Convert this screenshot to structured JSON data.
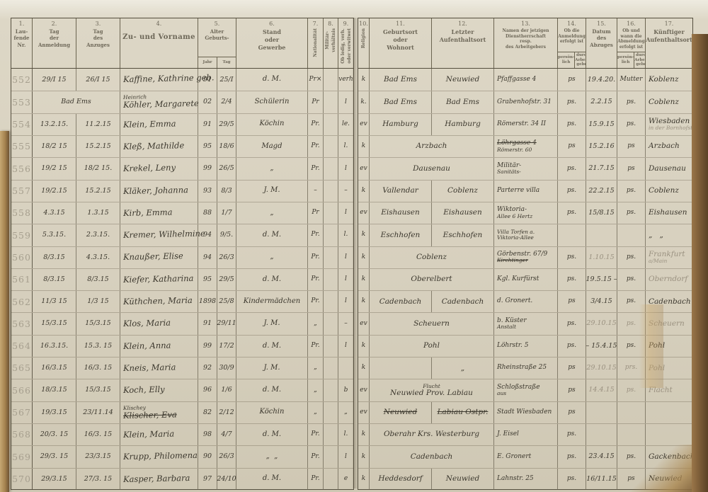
{
  "colors": {
    "paper": "#d7d0be",
    "ink": "#3b372d",
    "pencil": "#9a9180",
    "printed": "#6d6758",
    "binding": "#a5824f"
  },
  "header": {
    "c1": {
      "n": "1.",
      "l": "Lau-\nfende\nNr."
    },
    "c2": {
      "n": "2.",
      "l": "Tag\nder\nAnmeldung"
    },
    "c3": {
      "n": "3.",
      "l": "Tag\ndes\nAnzuges"
    },
    "c4": {
      "n": "4.",
      "l": "Zu- und Vorname"
    },
    "c5": {
      "n": "5.",
      "l": "Alter\nGeburts-",
      "s1": "Jahr",
      "s2": "Tag"
    },
    "c6": {
      "n": "6.",
      "l": "Stand\noder\nGewerbe"
    },
    "c7": {
      "n": "7.",
      "l": "Nationalität"
    },
    "c8": {
      "n": "8.",
      "l": "Militär-\nverhältnis"
    },
    "c9": {
      "n": "9.",
      "l": "Ob ledig, verh.\noder verwitwet"
    },
    "c10": {
      "n": "10.",
      "l": "Religion"
    },
    "c11": {
      "n": "11.",
      "l": "Geburtsort\noder\nWohnort"
    },
    "c12": {
      "n": "12.",
      "l": "Letzter\nAufenthaltsort"
    },
    "c13": {
      "n": "13.",
      "l": "Namen der jetzigen\nDienstherrschaft\nresp.\ndes Arbeitgebers"
    },
    "c14": {
      "n": "14.",
      "l": "Ob die\nAnmeldung\nerfolgt ist",
      "s1": "persön-\nlich",
      "s2": "durch\nArbeit-\ngeber"
    },
    "c15": {
      "n": "15.",
      "l": "Datum\ndes\nAbzuges"
    },
    "c16": {
      "n": "16.",
      "l": "Ob und\nwann die\nAbmeldung\nerfolgt ist",
      "s1": "persön-\nlich",
      "s2": "durch\nArbeit-\ngeber"
    },
    "c17": {
      "n": "17.",
      "l": "Künftiger\nAufenthaltsort"
    }
  },
  "rows": [
    {
      "nr": "552",
      "a": "29/I 15",
      "z": "26/I 15",
      "name": [
        {
          "t": "Kaffine, Kathrine geb."
        }
      ],
      "j": "91",
      "t": "25/I",
      "g": "d. M.",
      "n7": "Pr×",
      "m8": "",
      "f9": "verh",
      "r10": "k",
      "geb": [
        {
          "t": "Bad Ems"
        }
      ],
      "lz": [
        {
          "t": "Neuwied"
        }
      ],
      "d": [
        {
          "t": "Pfaffgasse 4"
        }
      ],
      "an": "ps",
      "ab": "19.4.20.",
      "am": "Mutter",
      "zl": [
        {
          "t": "Koblenz"
        }
      ]
    },
    {
      "nr": "553",
      "sp23": "Bad Ems",
      "name": [
        {
          "t": "Heinrich",
          "c": "small"
        },
        {
          "t": "Köhler, Margarete"
        }
      ],
      "j": "02",
      "t": "2/4",
      "g": "Schülerin",
      "n7": "Pr",
      "m8": "",
      "f9": "l",
      "r10": "k.",
      "geb": [
        {
          "t": "Bad Ems"
        }
      ],
      "lz": [
        {
          "t": "Bad Ems"
        }
      ],
      "d": [
        {
          "t": "Grabenhofstr. 31"
        }
      ],
      "an": "ps.",
      "ab": "2.2.15",
      "am": "ps.",
      "zl": [
        {
          "t": "Coblenz"
        }
      ]
    },
    {
      "nr": "554",
      "a": "13.2.15.",
      "z": "11.2.15",
      "name": [
        {
          "t": "Klein, Emma"
        }
      ],
      "j": "91",
      "t": "29/5",
      "g": "Köchin",
      "n7": "Pr.",
      "m8": "",
      "f9": "le.",
      "r10": "ev",
      "geb": [
        {
          "t": "Hamburg"
        }
      ],
      "lz": [
        {
          "t": "Hamburg"
        }
      ],
      "d": [
        {
          "t": "Römerstr. 34 II"
        }
      ],
      "an": "ps.",
      "ab": "15.9.15",
      "am": "ps.",
      "zl": [
        {
          "t": "Wiesbaden"
        },
        {
          "t": "in der Bornhofstr.",
          "c": "pencil small"
        }
      ]
    },
    {
      "nr": "555",
      "a": "18/2 15",
      "z": "15.2.15",
      "name": [
        {
          "t": "Kleß, Mathilde"
        }
      ],
      "j": "95",
      "t": "18/6",
      "g": "Magd",
      "n7": "Pr.",
      "m8": "",
      "f9": "l.",
      "r10": "k",
      "sp": [
        {
          "t": "Arzbach"
        }
      ],
      "d": [
        {
          "t": "Löhrgasse 4",
          "c": "struck"
        },
        {
          "t": "Römerstr. 60",
          "c": "small"
        }
      ],
      "an": "ps",
      "ab": "15.2.16",
      "am": "ps",
      "zl": [
        {
          "t": "Arzbach"
        }
      ]
    },
    {
      "nr": "556",
      "a": "19/2 15",
      "z": "18/2 15.",
      "name": [
        {
          "t": "Krekel, Leny"
        }
      ],
      "j": "99",
      "t": "26/5",
      "g": "„",
      "n7": "Pr.",
      "m8": "",
      "f9": "l",
      "r10": "ev",
      "sp": [
        {
          "t": "Dausenau"
        }
      ],
      "d": [
        {
          "t": "Militär-"
        },
        {
          "t": "Sanitäts-",
          "c": "small"
        }
      ],
      "an": "ps.",
      "ab": "21.7.15",
      "am": "ps",
      "zl": [
        {
          "t": "Dausenau"
        }
      ]
    },
    {
      "nr": "557",
      "a": "19/2.15",
      "z": "15.2.15",
      "name": [
        {
          "t": "Kläker, Johanna"
        }
      ],
      "j": "93",
      "t": "8/3",
      "g": "J. M.",
      "n7": "–",
      "m8": "",
      "f9": "–",
      "r10": "k",
      "geb": [
        {
          "t": "Vallendar"
        }
      ],
      "lz": [
        {
          "t": "Coblenz"
        }
      ],
      "d": [
        {
          "t": "Parterre villa"
        }
      ],
      "an": "ps.",
      "ab": "22.2.15",
      "am": "ps.",
      "zl": [
        {
          "t": "Coblenz"
        }
      ]
    },
    {
      "nr": "558",
      "a": "4.3.15",
      "z": "1.3.15",
      "name": [
        {
          "t": "Kirb, Emma"
        }
      ],
      "j": "88",
      "t": "1/7",
      "g": "„",
      "n7": "Pr",
      "m8": "",
      "f9": "l",
      "r10": "ev",
      "geb": [
        {
          "t": "Eishausen"
        }
      ],
      "lz": [
        {
          "t": "Eishausen"
        }
      ],
      "d": [
        {
          "t": "Wiktoria-"
        },
        {
          "t": "Allee 6 Hertz",
          "c": "small"
        }
      ],
      "an": "ps.",
      "ab": "15/8.15",
      "am": "ps.",
      "zl": [
        {
          "t": "Eishausen"
        }
      ]
    },
    {
      "nr": "559",
      "a": "5.3.15.",
      "z": "2.3.15.",
      "name": [
        {
          "t": "Kremer, Wilhelmine"
        }
      ],
      "j": "94",
      "t": "9/5.",
      "g": "d. M.",
      "n7": "Pr.",
      "m8": "",
      "f9": "l.",
      "r10": "k",
      "geb": [
        {
          "t": "Eschhofen"
        }
      ],
      "lz": [
        {
          "t": "Eschhofen"
        }
      ],
      "d": [
        {
          "t": "Villa Torfen a.",
          "c": "small"
        },
        {
          "t": "Viktoria-Allee",
          "c": "small"
        }
      ],
      "an": "",
      "ab": "",
      "am": "",
      "zl": [
        {
          "t": "„   „"
        }
      ]
    },
    {
      "nr": "560",
      "a": "8/3.15",
      "z": "4.3.15.",
      "name": [
        {
          "t": "Knaußer, Elise"
        }
      ],
      "j": "94",
      "t": "26/3",
      "g": "„",
      "n7": "Pr.",
      "m8": "",
      "f9": "l",
      "r10": "k",
      "sp": [
        {
          "t": "Coblenz"
        }
      ],
      "d": [
        {
          "t": "Görbenstr. 67/9"
        },
        {
          "t": "Kirchtinger",
          "c": "small struck"
        }
      ],
      "an": "ps.",
      "ab": {
        "t": "1.10.15",
        "c": "pencil"
      },
      "am": "ps.",
      "zl": [
        {
          "t": "Frankfurt",
          "c": "pencil"
        },
        {
          "t": "a/Main",
          "c": "pencil small"
        }
      ]
    },
    {
      "nr": "561",
      "a": "8/3.15",
      "z": "8/3.15",
      "name": [
        {
          "t": "Kiefer, Katharina"
        }
      ],
      "j": "95",
      "t": "29/5",
      "g": "d. M.",
      "n7": "Pr.",
      "m8": "",
      "f9": "l",
      "r10": "k",
      "sp": [
        {
          "t": "Oberelbert"
        }
      ],
      "d": [
        {
          "t": "Kgl. Kurfürst"
        }
      ],
      "an": "ps.",
      "ab": "19.5.15 –",
      "am": "ps.",
      "zl": [
        {
          "t": "Oberndorf",
          "c": "pencil"
        }
      ]
    },
    {
      "nr": "562",
      "a": "11/3 15",
      "z": "1/3 15",
      "name": [
        {
          "t": "Küthchen, Maria"
        }
      ],
      "j": "1898",
      "t": "25/8",
      "g": "Kindermädchen",
      "n7": "Pr.",
      "m8": "",
      "f9": "l",
      "r10": "k",
      "geb": [
        {
          "t": "Cadenbach"
        }
      ],
      "lz": [
        {
          "t": "Cadenbach"
        }
      ],
      "d": [
        {
          "t": "d. Gronert."
        }
      ],
      "an": "ps",
      "ab": "3/4.15",
      "am": "ps.",
      "zl": [
        {
          "t": "Cadenbach"
        }
      ]
    },
    {
      "nr": "563",
      "a": "15/3.15",
      "z": "15/3.15",
      "name": [
        {
          "t": "Klos, Maria"
        }
      ],
      "j": "91",
      "t": "29/11",
      "g": "J. M.",
      "n7": "„",
      "m8": "",
      "f9": "–",
      "r10": "ev",
      "sp": [
        {
          "t": "Scheuern"
        }
      ],
      "d": [
        {
          "t": "b. Küster"
        },
        {
          "t": "Anstalt",
          "c": "small"
        }
      ],
      "an": "ps.",
      "ab": {
        "t": "29.10.15",
        "c": "pencil"
      },
      "am": {
        "t": "ps.",
        "c": "pencil"
      },
      "zl": [
        {
          "t": "Scheuern",
          "c": "pencil"
        }
      ]
    },
    {
      "nr": "564",
      "a": "16.3.15.",
      "z": "15.3. 15",
      "name": [
        {
          "t": "Klein, Anna"
        }
      ],
      "j": "99",
      "t": "17/2",
      "g": "d. M.",
      "n7": "Pr.",
      "m8": "",
      "f9": "l",
      "r10": "k",
      "sp": [
        {
          "t": "Pohl"
        }
      ],
      "d": [
        {
          "t": "Löhrstr. 5"
        }
      ],
      "an": "ps.",
      "ab": "– 15.4.15",
      "am": "ps.",
      "zl": [
        {
          "t": "Pohl"
        }
      ]
    },
    {
      "nr": "565",
      "a": "16/3.15",
      "z": "16/3. 15",
      "name": [
        {
          "t": "Kneis, Maria"
        }
      ],
      "j": "92",
      "t": "30/9",
      "g": "J. M.",
      "n7": "„",
      "m8": "",
      "f9": "",
      "r10": "k",
      "geb": [],
      "lz": [
        {
          "t": "„"
        }
      ],
      "d": [
        {
          "t": "Rheinstraße 25"
        }
      ],
      "an": "ps",
      "ab": {
        "t": "29.10.15",
        "c": "pencil"
      },
      "am": {
        "t": "prs.",
        "c": "pencil"
      },
      "zl": [
        {
          "t": "Pohl",
          "c": "pencil"
        }
      ]
    },
    {
      "nr": "566",
      "a": "18/3.15",
      "z": "15/3.15",
      "name": [
        {
          "t": "Koch, Elly"
        }
      ],
      "j": "96",
      "t": "1/6",
      "g": "d. M.",
      "n7": "„",
      "m8": "",
      "f9": "b",
      "r10": "ev",
      "sp": [
        {
          "t": "Flucht",
          "c": "small"
        },
        {
          "t": "Neuwied Prov. Labiau"
        }
      ],
      "d": [
        {
          "t": "Schloßstraße"
        },
        {
          "t": "aus",
          "c": "small"
        }
      ],
      "an": "ps",
      "ab": {
        "t": "14.4.15",
        "c": "pencil"
      },
      "am": {
        "t": "ps.",
        "c": "pencil"
      },
      "zl": [
        {
          "t": "Flacht",
          "c": "pencil"
        }
      ]
    },
    {
      "nr": "567",
      "a": "19/3.15",
      "z": "23/11.14",
      "name": [
        {
          "t": "Klischey",
          "c": "small"
        },
        {
          "t": "Klischer, Eva",
          "c": "struck"
        }
      ],
      "j": "82",
      "t": "2/12",
      "g": "Köchin",
      "n7": "„",
      "m8": "",
      "f9": "„",
      "r10": "ev",
      "geb": [
        {
          "t": "Neuwied",
          "c": "struck"
        }
      ],
      "lz": [
        {
          "t": "Labiau Ostpr.",
          "c": "struck"
        }
      ],
      "d": [
        {
          "t": "Stadt Wiesbaden"
        }
      ],
      "an": "ps",
      "ab": "",
      "am": "",
      "zl": []
    },
    {
      "nr": "568",
      "a": "20/3. 15",
      "z": "16/3. 15",
      "name": [
        {
          "t": "Klein, Maria"
        }
      ],
      "j": "98",
      "t": "4/7",
      "g": "d. M.",
      "n7": "Pr.",
      "m8": "",
      "f9": "l.",
      "r10": "k",
      "sp": [
        {
          "t": "Oberahr Krs. Westerburg"
        }
      ],
      "d": [
        {
          "t": "J. Eisel"
        }
      ],
      "an": "ps.",
      "ab": "",
      "am": "",
      "zl": []
    },
    {
      "nr": "569",
      "a": "29/3. 15",
      "z": "23/3.15",
      "name": [
        {
          "t": "Krupp, Philomena"
        }
      ],
      "j": "90",
      "t": "26/3",
      "g": "„  „",
      "n7": "Pr.",
      "m8": "",
      "f9": "l",
      "r10": "k",
      "sp": [
        {
          "t": "Cadenbach"
        }
      ],
      "d": [
        {
          "t": "E. Gronert"
        }
      ],
      "an": "ps.",
      "ab": "23.4.15",
      "am": "ps.",
      "zl": [
        {
          "t": "Gackenbach"
        }
      ]
    },
    {
      "nr": "570",
      "a": "29/3.15",
      "z": "27/3. 15",
      "name": [
        {
          "t": "Kasper, Barbara"
        }
      ],
      "j": "97",
      "t": "24/10",
      "g": "d. M.",
      "n7": "Pr.",
      "m8": "",
      "f9": "e",
      "r10": "k",
      "geb": [
        {
          "t": "Heddesdorf"
        }
      ],
      "lz": [
        {
          "t": "Neuwied"
        }
      ],
      "d": [
        {
          "t": "Lahnstr. 25"
        }
      ],
      "an": "ps.",
      "ab": "16/11.15",
      "am": "ps",
      "zl": [
        {
          "t": "Neuwied"
        }
      ]
    }
  ]
}
